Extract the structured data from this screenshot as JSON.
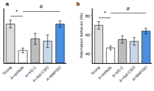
{
  "chart_data": [
    {
      "type": "bar",
      "title": "a",
      "categories": [
        "Young",
        "A+Vehicle",
        "A+VG C",
        "A+Apt C320",
        "A+NXP032"
      ],
      "values": [
        250,
        80,
        155,
        140,
        250
      ],
      "errors": [
        25,
        15,
        35,
        40,
        20
      ],
      "colors": [
        "#dcdcdc",
        "#ffffff",
        "#bdbdbd",
        "#c9d7ec",
        "#4a90e2"
      ],
      "ylim": [
        0,
        350
      ],
      "tick_labels": "x",
      "brackets": [
        {
          "text": "*",
          "from": 0,
          "to": 1,
          "y": 300
        },
        {
          "text": "#",
          "from": 1,
          "to": 4,
          "y": 330
        }
      ]
    },
    {
      "type": "bar",
      "title": "b",
      "y_label": "Alternation behavior (%)",
      "categories": [
        "Young",
        "A+Vehicle",
        "A+VG C",
        "A+Apt C320",
        "A+NXP032"
      ],
      "values": [
        70,
        46,
        55,
        53,
        64
      ],
      "errors": [
        4,
        2,
        4,
        4,
        3
      ],
      "colors": [
        "#dcdcdc",
        "#ffffff",
        "#bdbdbd",
        "#c9d7ec",
        "#4a90e2"
      ],
      "ylim": [
        30,
        88
      ],
      "yticks": [
        40,
        60,
        80
      ],
      "brackets": [
        {
          "text": "*",
          "from": 0,
          "to": 1,
          "y": 78
        },
        {
          "text": "#",
          "from": 1,
          "to": 4,
          "y": 83
        }
      ]
    }
  ]
}
